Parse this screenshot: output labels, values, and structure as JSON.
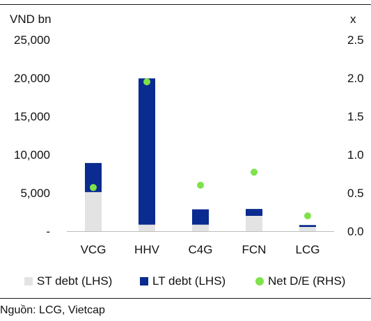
{
  "chart_data": {
    "type": "bar",
    "stacked": true,
    "categories": [
      "VCG",
      "HHV",
      "C4G",
      "FCN",
      "LCG"
    ],
    "series": [
      {
        "name": "ST debt (LHS)",
        "axis": "left",
        "color": "#e3e3e3",
        "values": [
          5100,
          850,
          850,
          2000,
          550
        ]
      },
      {
        "name": "LT debt (LHS)",
        "axis": "left",
        "color": "#0a2b8f",
        "values": [
          3800,
          19100,
          2000,
          900,
          250
        ]
      },
      {
        "name": "Net D/E (RHS)",
        "axis": "right",
        "type": "scatter",
        "color": "#7ee34a",
        "values": [
          0.57,
          1.95,
          0.6,
          0.77,
          0.2
        ]
      }
    ],
    "y_left": {
      "label": "VND bn",
      "range": [
        0,
        25000
      ],
      "ticks": [
        "-",
        "5,000",
        "10,000",
        "15,000",
        "20,000",
        "25,000"
      ]
    },
    "y_right": {
      "label": "x",
      "range": [
        0,
        2.5
      ],
      "ticks": [
        "0.0",
        "0.5",
        "1.0",
        "1.5",
        "2.0",
        "2.5"
      ]
    },
    "grid": false,
    "legend_position": "bottom"
  },
  "source": "Nguồn: LCG, Vietcap"
}
